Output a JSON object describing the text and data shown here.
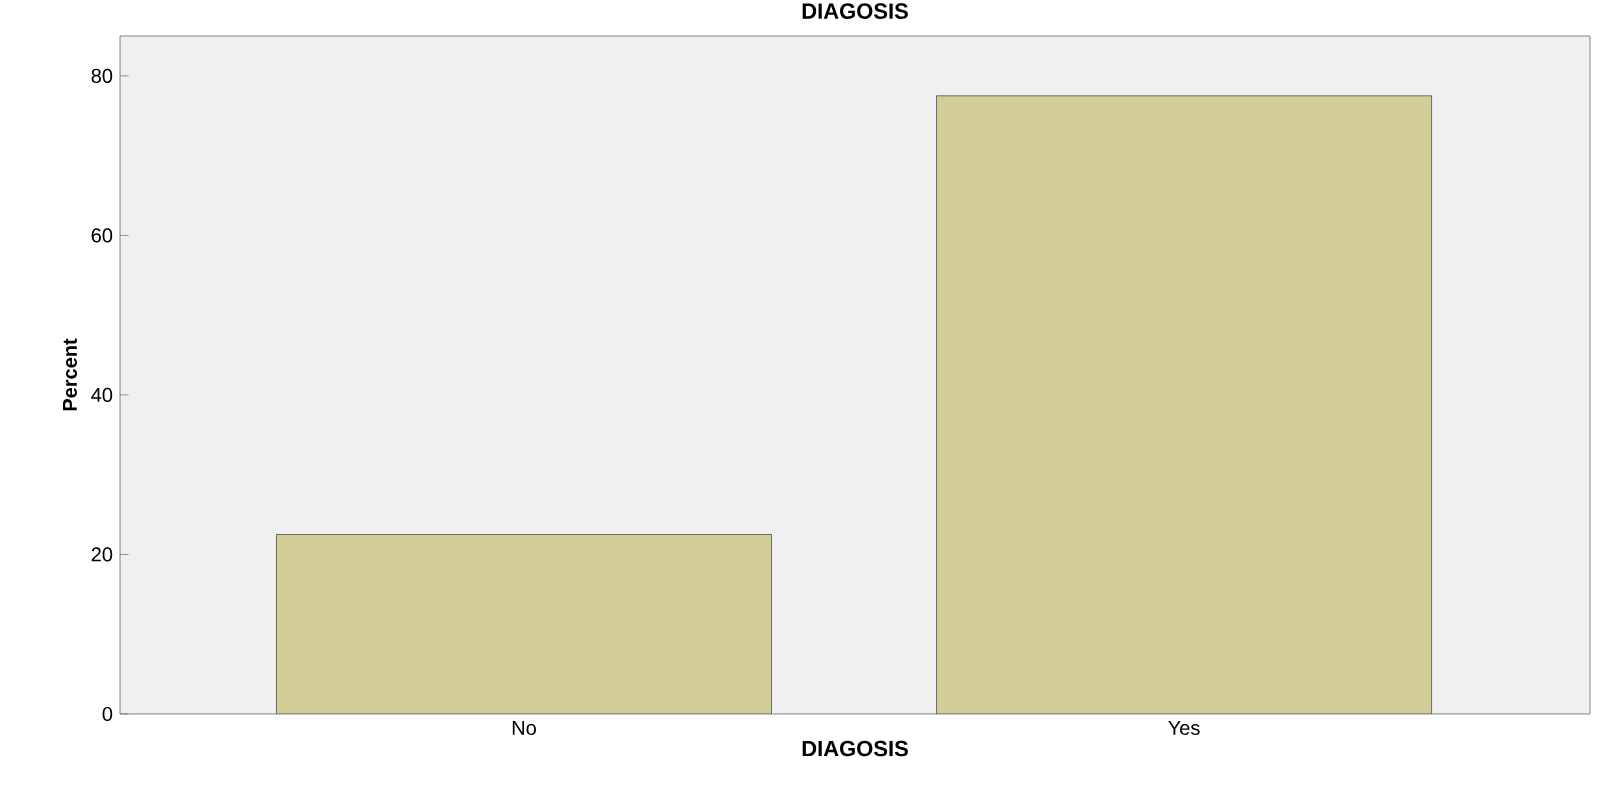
{
  "chart_data": {
    "type": "bar",
    "title": "DIAGOSIS",
    "xlabel": "DIAGOSIS",
    "ylabel": "Percent",
    "categories": [
      "No",
      "Yes"
    ],
    "values": [
      22.5,
      77.5
    ],
    "color": "#d3ce97",
    "ylim": [
      0,
      85
    ],
    "yticks": [
      0,
      20,
      40,
      60,
      80
    ]
  }
}
